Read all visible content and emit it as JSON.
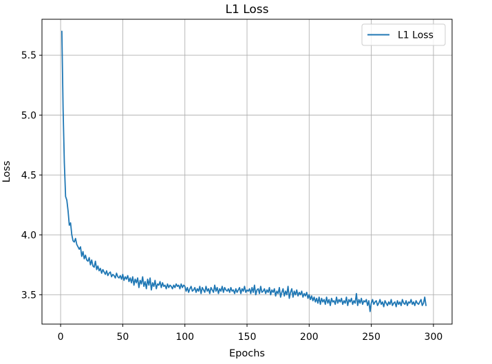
{
  "chart_data": {
    "type": "line",
    "title": "L1 Loss",
    "xlabel": "Epochs",
    "ylabel": "Loss",
    "xlim": [
      -15,
      315
    ],
    "ylim": [
      3.255,
      5.8
    ],
    "xticks": [
      0,
      50,
      100,
      150,
      200,
      250,
      300
    ],
    "yticks": [
      3.5,
      4.0,
      4.5,
      5.0,
      5.5
    ],
    "ytick_labels": [
      "3.5",
      "4.0",
      "4.5",
      "5.0",
      "5.5"
    ],
    "grid": true,
    "legend_position": "top-right",
    "colors": {
      "series": "#1f77b4",
      "grid": "#b0b0b0",
      "axes": "#000000"
    },
    "series": [
      {
        "name": "L1 Loss",
        "x_start": 1,
        "x_step": 1,
        "values": [
          5.7,
          5.05,
          4.6,
          4.32,
          4.29,
          4.2,
          4.08,
          4.1,
          4.0,
          3.95,
          3.94,
          3.97,
          3.92,
          3.9,
          3.88,
          3.9,
          3.82,
          3.86,
          3.8,
          3.83,
          3.79,
          3.78,
          3.81,
          3.75,
          3.79,
          3.74,
          3.73,
          3.78,
          3.71,
          3.74,
          3.7,
          3.72,
          3.68,
          3.71,
          3.69,
          3.67,
          3.7,
          3.66,
          3.68,
          3.69,
          3.65,
          3.67,
          3.66,
          3.64,
          3.68,
          3.65,
          3.64,
          3.66,
          3.63,
          3.67,
          3.62,
          3.65,
          3.63,
          3.66,
          3.61,
          3.64,
          3.6,
          3.65,
          3.58,
          3.63,
          3.6,
          3.64,
          3.56,
          3.62,
          3.59,
          3.65,
          3.57,
          3.61,
          3.55,
          3.63,
          3.58,
          3.64,
          3.54,
          3.6,
          3.57,
          3.62,
          3.55,
          3.59,
          3.58,
          3.61,
          3.56,
          3.6,
          3.57,
          3.58,
          3.55,
          3.59,
          3.56,
          3.58,
          3.57,
          3.55,
          3.58,
          3.56,
          3.59,
          3.57,
          3.58,
          3.55,
          3.59,
          3.56,
          3.58,
          3.57,
          3.53,
          3.56,
          3.52,
          3.55,
          3.57,
          3.53,
          3.54,
          3.56,
          3.52,
          3.55,
          3.53,
          3.57,
          3.51,
          3.56,
          3.54,
          3.52,
          3.57,
          3.53,
          3.55,
          3.51,
          3.56,
          3.54,
          3.52,
          3.58,
          3.53,
          3.56,
          3.51,
          3.55,
          3.53,
          3.57,
          3.52,
          3.56,
          3.54,
          3.53,
          3.55,
          3.52,
          3.56,
          3.53,
          3.54,
          3.51,
          3.55,
          3.52,
          3.54,
          3.56,
          3.51,
          3.55,
          3.53,
          3.57,
          3.52,
          3.54,
          3.53,
          3.55,
          3.51,
          3.56,
          3.52,
          3.58,
          3.5,
          3.54,
          3.55,
          3.51,
          3.57,
          3.52,
          3.53,
          3.55,
          3.51,
          3.54,
          3.52,
          3.56,
          3.5,
          3.54,
          3.52,
          3.55,
          3.49,
          3.53,
          3.51,
          3.56,
          3.48,
          3.52,
          3.55,
          3.49,
          3.53,
          3.5,
          3.57,
          3.47,
          3.52,
          3.55,
          3.48,
          3.53,
          3.5,
          3.54,
          3.49,
          3.52,
          3.5,
          3.53,
          3.48,
          3.51,
          3.49,
          3.52,
          3.47,
          3.5,
          3.46,
          3.49,
          3.45,
          3.48,
          3.44,
          3.47,
          3.43,
          3.48,
          3.42,
          3.47,
          3.44,
          3.46,
          3.42,
          3.48,
          3.43,
          3.46,
          3.41,
          3.47,
          3.44,
          3.45,
          3.42,
          3.48,
          3.43,
          3.46,
          3.44,
          3.47,
          3.42,
          3.45,
          3.43,
          3.48,
          3.41,
          3.46,
          3.44,
          3.47,
          3.42,
          3.45,
          3.43,
          3.51,
          3.41,
          3.46,
          3.43,
          3.47,
          3.42,
          3.45,
          3.44,
          3.46,
          3.41,
          3.45,
          3.36,
          3.43,
          3.46,
          3.42,
          3.44,
          3.45,
          3.41,
          3.43,
          3.46,
          3.42,
          3.44,
          3.4,
          3.45,
          3.43,
          3.41,
          3.44,
          3.42,
          3.46,
          3.41,
          3.43,
          3.44,
          3.4,
          3.45,
          3.42,
          3.44,
          3.41,
          3.46,
          3.43,
          3.42,
          3.45,
          3.41,
          3.44,
          3.43,
          3.46,
          3.42,
          3.44,
          3.41,
          3.45,
          3.43,
          3.42,
          3.44,
          3.46,
          3.41,
          3.43,
          3.48,
          3.41
        ]
      }
    ]
  }
}
